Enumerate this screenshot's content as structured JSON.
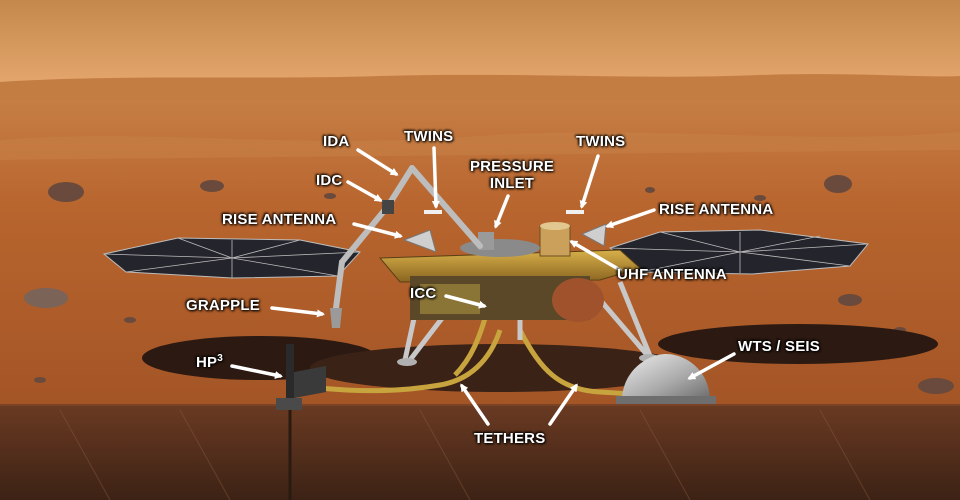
{
  "labels": {
    "ida": "IDA",
    "idc": "IDC",
    "rise_antenna_left": "RISE ANTENNA",
    "grapple": "GRAPPLE",
    "hp3_base": "HP",
    "hp3_sup": "3",
    "twins_left": "TWINS",
    "pressure_inlet_line1": "PRESSURE",
    "pressure_inlet_line2": "INLET",
    "twins_right": "TWINS",
    "rise_antenna_right": "RISE ANTENNA",
    "uhf_antenna": "UHF ANTENNA",
    "icc": "ICC",
    "wts_seis": "WTS / SEIS",
    "tethers": "TETHERS"
  },
  "colors": {
    "sky_top": "#c98a4a",
    "sky_horizon": "#e0a368",
    "ground": "#b5602a",
    "ground_far": "#c47a40",
    "subsurface": "#4a2a1a",
    "solar_panel": "#2a2a33",
    "lander_deck": "#c8a040",
    "label_text": "#ffffff",
    "arrow": "#ffffff"
  }
}
